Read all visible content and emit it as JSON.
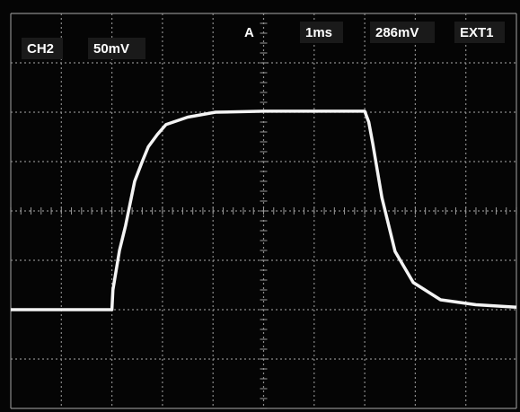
{
  "readout": {
    "channel": "CH2",
    "volts_per_div": "50mV",
    "trigger_mode": "A",
    "time_per_div": "1ms",
    "trigger_level": "286mV",
    "trigger_source": "EXT1"
  },
  "chart_data": {
    "type": "line",
    "color": "#f4f4f4",
    "x": [
      0,
      1,
      2,
      2.02,
      2.15,
      2.27,
      2.45,
      2.6,
      2.72,
      2.9,
      3.07,
      3.5,
      4.05,
      5,
      6,
      7,
      7.08,
      7.16,
      7.34,
      7.6,
      7.96,
      8.5,
      9.2,
      10
    ],
    "series": [
      {
        "name": "CH2",
        "color": "#f4f4f4",
        "values": [
          2,
          2,
          2,
          2.4,
          3.2,
          3.7,
          4.6,
          5.0,
          5.3,
          5.55,
          5.75,
          5.9,
          6.0,
          6.02,
          6.02,
          6.02,
          5.8,
          5.36,
          4.27,
          3.18,
          2.55,
          2.2,
          2.1,
          2.05
        ]
      }
    ],
    "xlim": [
      0,
      10
    ],
    "ylim": [
      0,
      8
    ],
    "grid": true
  }
}
